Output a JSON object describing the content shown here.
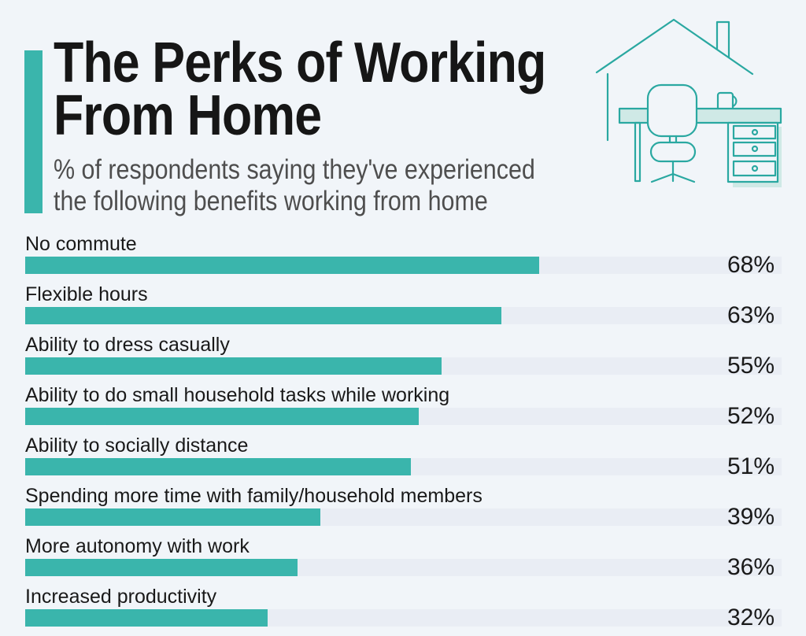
{
  "page": {
    "background": "#f1f5f9"
  },
  "header": {
    "accent_color": "#3ab5ac",
    "title_lines": [
      "The Perks of Working",
      "From Home"
    ],
    "subtitle_lines": [
      "% of respondents saying they've experienced",
      "the following benefits working from home"
    ]
  },
  "illustration": {
    "description": "teal outline drawing of a house containing a desk, office chair, coffee mug and drawer unit",
    "stroke_color": "#2aa8a1",
    "fill_color": "#cfe9e6"
  },
  "chart_data": {
    "type": "bar",
    "orientation": "horizontal",
    "title": "The Perks of Working From Home",
    "subtitle": "% of respondents saying they've experienced the following benefits working from home",
    "categories": [
      "No commute",
      "Flexible hours",
      "Ability to dress casually",
      "Ability to do small household tasks while working",
      "Ability to socially distance",
      "Spending more time with family/household members",
      "More autonomy with work",
      "Increased productivity"
    ],
    "values": [
      68,
      63,
      55,
      52,
      51,
      39,
      36,
      32
    ],
    "value_suffix": "%",
    "xlim": [
      0,
      100
    ],
    "grid": false,
    "legend": false,
    "bar_color": "#3ab5ac",
    "track_color": "#e9edf4"
  }
}
